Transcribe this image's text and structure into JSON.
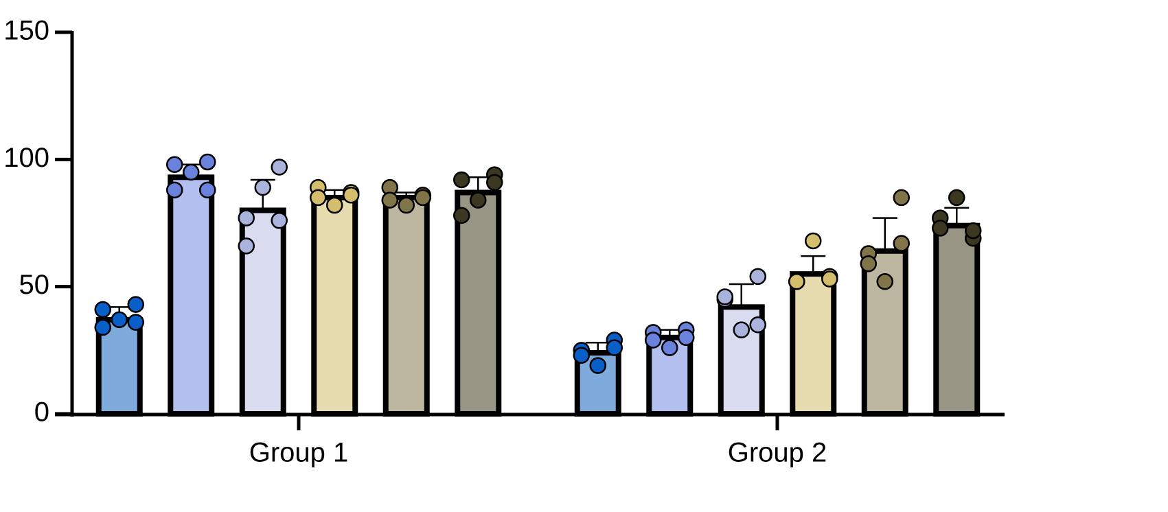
{
  "chart_data": {
    "type": "bar",
    "categories": [
      "Group 1",
      "Group 2"
    ],
    "ylim": [
      0,
      150
    ],
    "yticks": [
      0,
      50,
      100,
      150
    ],
    "series": [
      {
        "color": "#7eaadc",
        "point_color": "#0a5ec8",
        "values": [
          37,
          24
        ],
        "errors": [
          5,
          4
        ],
        "points": [
          [
            41,
            43,
            37,
            34,
            36
          ],
          [
            25,
            29,
            19,
            23,
            26
          ]
        ]
      },
      {
        "color": "#b3bfee",
        "point_color": "#6a82dc",
        "values": [
          93,
          30
        ],
        "errors": [
          5,
          3
        ],
        "points": [
          [
            98,
            99,
            95,
            88,
            88
          ],
          [
            32,
            33,
            26,
            29,
            30
          ]
        ]
      },
      {
        "color": "#d9dbef",
        "point_color": "#aab3db",
        "values": [
          80,
          42
        ],
        "errors": [
          12,
          9
        ],
        "points": [
          [
            77,
            97,
            89,
            66,
            76
          ],
          [
            45,
            54,
            33,
            46,
            35
          ]
        ]
      },
      {
        "color": "#e6dcb0",
        "point_color": "#d4be6e",
        "values": [
          85,
          55
        ],
        "errors": [
          3,
          7
        ],
        "points": [
          [
            89,
            87,
            82,
            85,
            86
          ],
          [
            52,
            54,
            68,
            52,
            53
          ]
        ]
      },
      {
        "color": "#bdb6a0",
        "point_color": "#807448",
        "values": [
          85,
          64
        ],
        "errors": [
          2,
          13
        ],
        "points": [
          [
            89,
            86,
            82,
            84,
            85
          ],
          [
            63,
            85,
            52,
            59,
            67
          ]
        ]
      },
      {
        "color": "#989585",
        "point_color": "#3b3720",
        "values": [
          87,
          74
        ],
        "errors": [
          6,
          7
        ],
        "points": [
          [
            92,
            94,
            84,
            78,
            91
          ],
          [
            77,
            69,
            85,
            73,
            72
          ]
        ]
      }
    ]
  }
}
